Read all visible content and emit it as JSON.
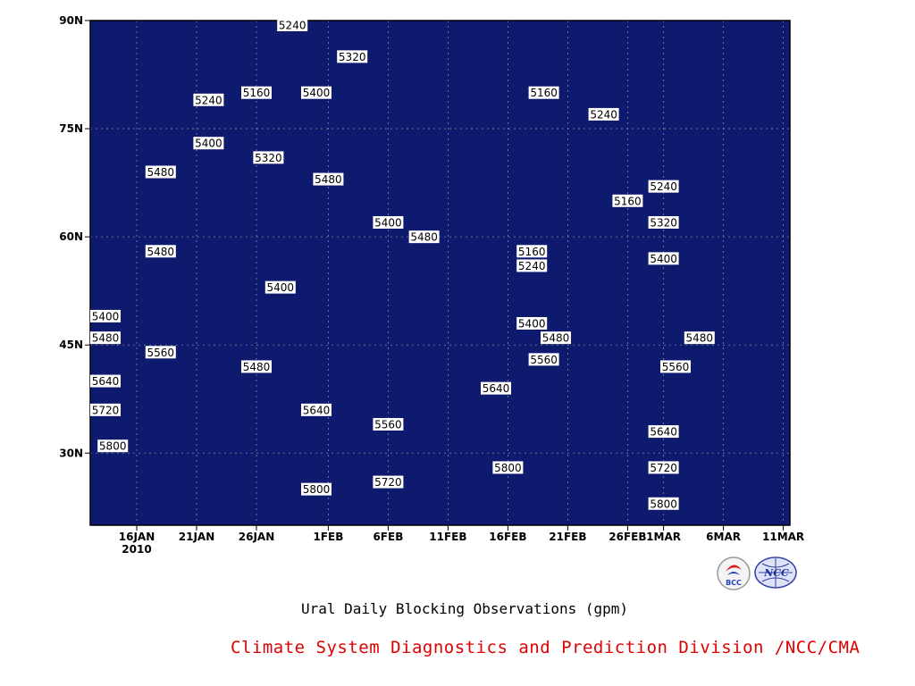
{
  "chart_data": {
    "type": "heatmap",
    "title": "Ural Daily Blocking Observations (gpm)",
    "x_ticks": [
      {
        "date": "2010-01-16",
        "label": "16JAN",
        "sublabel": "2010"
      },
      {
        "date": "2010-01-21",
        "label": "21JAN"
      },
      {
        "date": "2010-01-26",
        "label": "26JAN"
      },
      {
        "date": "2010-02-01",
        "label": "1FEB"
      },
      {
        "date": "2010-02-06",
        "label": "6FEB"
      },
      {
        "date": "2010-02-11",
        "label": "11FEB"
      },
      {
        "date": "2010-02-16",
        "label": "16FEB"
      },
      {
        "date": "2010-02-21",
        "label": "21FEB"
      },
      {
        "date": "2010-02-26",
        "label": "26FEB"
      },
      {
        "date": "2010-03-01",
        "label": "1MAR"
      },
      {
        "date": "2010-03-06",
        "label": "6MAR"
      },
      {
        "date": "2010-03-11",
        "label": "11MAR"
      }
    ],
    "y_ticks": [
      {
        "lat": 30,
        "label": "30N"
      },
      {
        "lat": 45,
        "label": "45N"
      },
      {
        "lat": 60,
        "label": "60N"
      },
      {
        "lat": 75,
        "label": "75N"
      },
      {
        "lat": 90,
        "label": "90N"
      }
    ],
    "ylim": [
      20,
      90
    ],
    "grid": true,
    "contour_levels": [
      5160,
      5240,
      5320,
      5400,
      5480,
      5560,
      5640,
      5720,
      5800
    ],
    "colors": {
      "lt5160": "#0e1a6e",
      "5160_5240": "#1a2ed8",
      "5240_5320": "#4a5aee",
      "5320_5400": "#5d90e8",
      "5400_5480": "#66c8ff",
      "5480_5560": "#fafa8a",
      "5560_5640": "#fce2a2",
      "5640_5720": "#fca67a",
      "5720_5800": "#fc7a4a",
      "5800_5880": "#f7707e",
      "gt5880": "#f03848"
    },
    "contour_labels": [
      {
        "date": "2010-01-29",
        "lat": 90,
        "value": 5240
      },
      {
        "date": "2010-02-03",
        "lat": 85,
        "value": 5320
      },
      {
        "date": "2010-01-22",
        "lat": 79,
        "value": 5240
      },
      {
        "date": "2010-01-26",
        "lat": 80,
        "value": 5160
      },
      {
        "date": "2010-01-31",
        "lat": 80,
        "value": 5400
      },
      {
        "date": "2010-02-19",
        "lat": 80,
        "value": 5160
      },
      {
        "date": "2010-02-24",
        "lat": 77,
        "value": 5240
      },
      {
        "date": "2010-01-22",
        "lat": 73,
        "value": 5400
      },
      {
        "date": "2010-01-27",
        "lat": 71,
        "value": 5320
      },
      {
        "date": "2010-01-18",
        "lat": 69,
        "value": 5480
      },
      {
        "date": "2010-02-01",
        "lat": 68,
        "value": 5480
      },
      {
        "date": "2010-03-01",
        "lat": 67,
        "value": 5240
      },
      {
        "date": "2010-02-26",
        "lat": 65,
        "value": 5160
      },
      {
        "date": "2010-03-01",
        "lat": 62,
        "value": 5320
      },
      {
        "date": "2010-02-06",
        "lat": 62,
        "value": 5400
      },
      {
        "date": "2010-02-09",
        "lat": 60,
        "value": 5480
      },
      {
        "date": "2010-01-18",
        "lat": 58,
        "value": 5480
      },
      {
        "date": "2010-02-18",
        "lat": 58,
        "value": 5160
      },
      {
        "date": "2010-03-01",
        "lat": 57,
        "value": 5400
      },
      {
        "date": "2010-02-18",
        "lat": 56,
        "value": 5240
      },
      {
        "date": "2010-01-28",
        "lat": 53,
        "value": 5400
      },
      {
        "date": "2010-01-11",
        "lat": 49,
        "value": 5400
      },
      {
        "date": "2010-02-18",
        "lat": 48,
        "value": 5400
      },
      {
        "date": "2010-02-20",
        "lat": 46,
        "value": 5480
      },
      {
        "date": "2010-03-04",
        "lat": 46,
        "value": 5480
      },
      {
        "date": "2010-01-11",
        "lat": 46,
        "value": 5480
      },
      {
        "date": "2010-01-18",
        "lat": 44,
        "value": 5560
      },
      {
        "date": "2010-02-19",
        "lat": 43,
        "value": 5560
      },
      {
        "date": "2010-03-02",
        "lat": 42,
        "value": 5560
      },
      {
        "date": "2010-01-26",
        "lat": 42,
        "value": 5480
      },
      {
        "date": "2010-01-13",
        "lat": 40,
        "value": 5640
      },
      {
        "date": "2010-02-15",
        "lat": 39,
        "value": 5640
      },
      {
        "date": "2010-01-13",
        "lat": 36,
        "value": 5720
      },
      {
        "date": "2010-01-31",
        "lat": 36,
        "value": 5640
      },
      {
        "date": "2010-02-06",
        "lat": 34,
        "value": 5560
      },
      {
        "date": "2010-03-01",
        "lat": 33,
        "value": 5640
      },
      {
        "date": "2010-01-14",
        "lat": 31,
        "value": 5800
      },
      {
        "date": "2010-02-16",
        "lat": 28,
        "value": 5800
      },
      {
        "date": "2010-03-01",
        "lat": 28,
        "value": 5720
      },
      {
        "date": "2010-02-06",
        "lat": 26,
        "value": 5720
      },
      {
        "date": "2010-01-31",
        "lat": 25,
        "value": 5800
      },
      {
        "date": "2010-03-01",
        "lat": 23,
        "value": 5800
      }
    ]
  },
  "caption": "Ural Daily Blocking Observations (gpm)",
  "credit": "Climate System Diagnostics and Prediction Division /NCC/CMA",
  "logos": {
    "left": {
      "icon": "bcc-logo",
      "text": "BCC"
    },
    "right": {
      "icon": "ncc-logo",
      "text": "NCC"
    }
  }
}
